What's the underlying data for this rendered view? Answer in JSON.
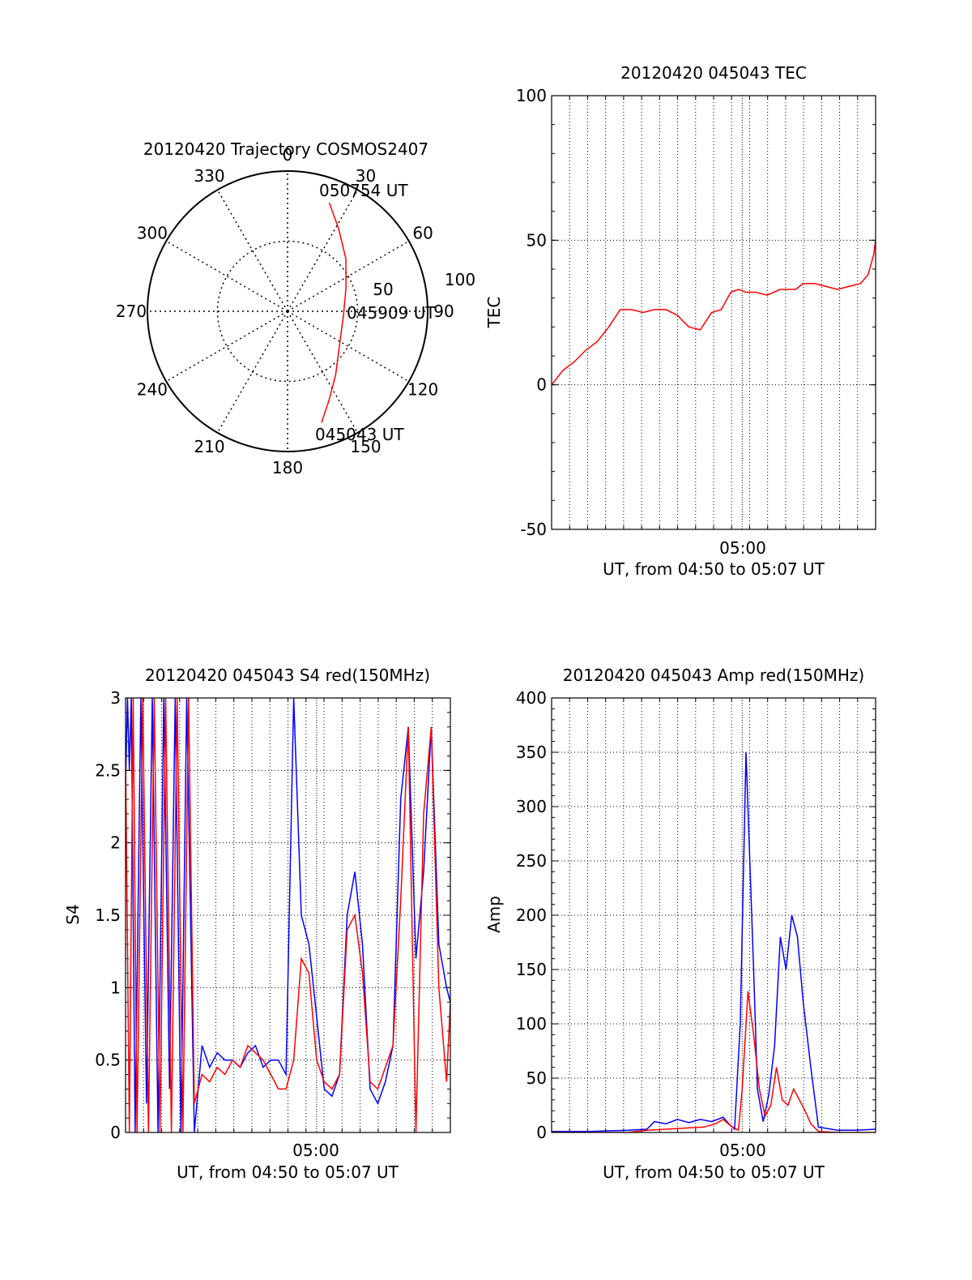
{
  "colors": {
    "red": "#ff0000",
    "blue": "#0000ff",
    "axis": "#000000",
    "grid": "#000000"
  },
  "chart_data": [
    {
      "id": "trajectory",
      "type": "polar",
      "title": "20120420 Trajectory COSMOS2407",
      "azimuth_labels": [
        "0",
        "30",
        "60",
        "90",
        "120",
        "150",
        "180",
        "210",
        "240",
        "270",
        "300",
        "330"
      ],
      "elevation_labels": [
        "50",
        "100"
      ],
      "start_label": "045043 UT",
      "mid_label": "045909 UT",
      "end_label": "050754 UT",
      "track": [
        {
          "az": 163,
          "el": 17
        },
        {
          "az": 155,
          "el": 30
        },
        {
          "az": 143,
          "el": 43
        },
        {
          "az": 125,
          "el": 55
        },
        {
          "az": 95,
          "el": 60
        },
        {
          "az": 68,
          "el": 55
        },
        {
          "az": 48,
          "el": 44
        },
        {
          "az": 32,
          "el": 31
        },
        {
          "az": 21,
          "el": 17
        }
      ]
    },
    {
      "id": "tec",
      "type": "line",
      "title": "20120420 045043 TEC",
      "ylabel": "TEC",
      "xlabel": "UT, from 04:50 to 05:07 UT",
      "x_tick_label": "05:00",
      "ylim": [
        -50,
        100
      ],
      "y_ticks": [
        "-50",
        "0",
        "50",
        "100"
      ],
      "series": [
        {
          "color": "red",
          "x": [
            0,
            0.6,
            1.2,
            1.8,
            2.4,
            3.0,
            3.6,
            4.2,
            4.8,
            5.4,
            6.0,
            6.6,
            7.2,
            7.8,
            8.4,
            8.9,
            9.4,
            9.8,
            10.2,
            10.7,
            11.3,
            12.0,
            12.8,
            13.2,
            13.8,
            14.4,
            15.0,
            15.6,
            16.2,
            16.6,
            16.9,
            17.0
          ],
          "y": [
            0,
            5,
            8,
            12,
            15,
            20,
            26,
            26,
            25,
            26,
            26,
            24,
            20,
            19,
            25,
            26,
            32,
            33,
            32,
            32,
            31,
            33,
            33,
            35,
            35,
            34,
            33,
            34,
            35,
            38,
            45,
            50
          ]
        }
      ]
    },
    {
      "id": "s4",
      "type": "line",
      "title": "20120420 045043 S4 red(150MHz)",
      "ylabel": "S4",
      "xlabel": "UT, from 04:50 to 05:07 UT",
      "x_tick_label": "05:00",
      "ylim": [
        0,
        3
      ],
      "y_ticks": [
        "0",
        "0.5",
        "1",
        "1.5",
        "2",
        "2.5",
        "3"
      ],
      "series": [
        {
          "color": "blue",
          "x": [
            0,
            0.1,
            0.2,
            0.3,
            0.5,
            0.8,
            1.1,
            1.4,
            1.7,
            2.0,
            2.3,
            2.6,
            2.9,
            3.2,
            3.6,
            4.0,
            4.4,
            4.8,
            5.2,
            5.6,
            6.0,
            6.4,
            6.8,
            7.2,
            7.6,
            8.0,
            8.4,
            8.8,
            9.2,
            9.6,
            10.0,
            10.4,
            10.8,
            11.2,
            11.6,
            12.0,
            12.4,
            12.8,
            13.2,
            13.6,
            14.0,
            14.4,
            14.8,
            15.2,
            15.6,
            16.0,
            16.4,
            16.8,
            17.0
          ],
          "y": [
            2.4,
            3,
            2.5,
            3,
            0,
            3,
            0.2,
            3,
            0,
            3,
            0.3,
            3,
            0,
            3,
            0,
            0.6,
            0.45,
            0.55,
            0.5,
            0.5,
            0.45,
            0.55,
            0.6,
            0.45,
            0.5,
            0.5,
            0.4,
            3,
            1.5,
            1.3,
            0.8,
            0.3,
            0.25,
            0.4,
            1.5,
            1.8,
            1.3,
            0.3,
            0.2,
            0.35,
            0.6,
            2.3,
            2.8,
            1.2,
            1.8,
            2.8,
            1.3,
            1.0,
            0.9
          ]
        },
        {
          "color": "red",
          "x": [
            0,
            0.2,
            0.4,
            0.6,
            0.9,
            1.2,
            1.5,
            1.8,
            2.1,
            2.4,
            2.7,
            3.0,
            3.3,
            3.6,
            4.0,
            4.4,
            4.8,
            5.2,
            5.6,
            6.0,
            6.4,
            6.8,
            7.2,
            7.6,
            8.0,
            8.4,
            8.8,
            9.2,
            9.6,
            10.0,
            10.4,
            10.8,
            11.2,
            11.6,
            12.0,
            12.4,
            12.8,
            13.2,
            13.6,
            14.0,
            14.4,
            14.8,
            15.2,
            15.6,
            16.0,
            16.4,
            16.8,
            17.0
          ],
          "y": [
            2.6,
            0,
            3,
            0,
            3,
            0,
            3,
            0,
            3,
            0,
            3,
            0,
            3,
            0.2,
            0.4,
            0.35,
            0.45,
            0.4,
            0.5,
            0.45,
            0.6,
            0.55,
            0.5,
            0.4,
            0.3,
            0.3,
            0.5,
            1.2,
            1.1,
            0.5,
            0.35,
            0.3,
            0.4,
            1.4,
            1.5,
            1.1,
            0.35,
            0.3,
            0.45,
            0.6,
            1.6,
            2.8,
            0,
            2.2,
            2.8,
            1.0,
            0.35,
            0.9
          ]
        }
      ]
    },
    {
      "id": "amp",
      "type": "line",
      "title": "20120420 045043 Amp red(150MHz)",
      "ylabel": "Amp",
      "xlabel": "UT, from 04:50 to 05:07 UT",
      "x_tick_label": "05:00",
      "ylim": [
        0,
        400
      ],
      "y_ticks": [
        "0",
        "50",
        "100",
        "150",
        "200",
        "250",
        "300",
        "350",
        "400"
      ],
      "series": [
        {
          "color": "blue",
          "x": [
            0,
            2,
            4,
            5.0,
            5.4,
            6.0,
            6.6,
            7.2,
            7.8,
            8.4,
            9.0,
            9.3,
            9.6,
            9.9,
            10.2,
            10.4,
            10.6,
            10.8,
            11.1,
            11.4,
            11.7,
            12.0,
            12.3,
            12.6,
            12.9,
            13.2,
            13.6,
            14,
            15,
            16,
            17
          ],
          "y": [
            1,
            1,
            2,
            3,
            10,
            8,
            12,
            9,
            12,
            10,
            14,
            8,
            3,
            100,
            350,
            250,
            150,
            40,
            10,
            35,
            80,
            180,
            150,
            200,
            180,
            120,
            60,
            5,
            2,
            2,
            3
          ]
        },
        {
          "color": "red",
          "x": [
            0,
            4,
            5,
            6,
            7,
            8,
            8.6,
            9.0,
            9.4,
            9.8,
            10.0,
            10.3,
            10.6,
            10.9,
            11.2,
            11.5,
            11.8,
            12.1,
            12.4,
            12.7,
            13.0,
            13.3,
            13.6,
            14,
            15,
            17
          ],
          "y": [
            0,
            0,
            2,
            3,
            4,
            5,
            8,
            12,
            6,
            2,
            40,
            130,
            90,
            40,
            15,
            25,
            60,
            30,
            25,
            40,
            30,
            20,
            8,
            1,
            0,
            0
          ]
        }
      ]
    }
  ]
}
